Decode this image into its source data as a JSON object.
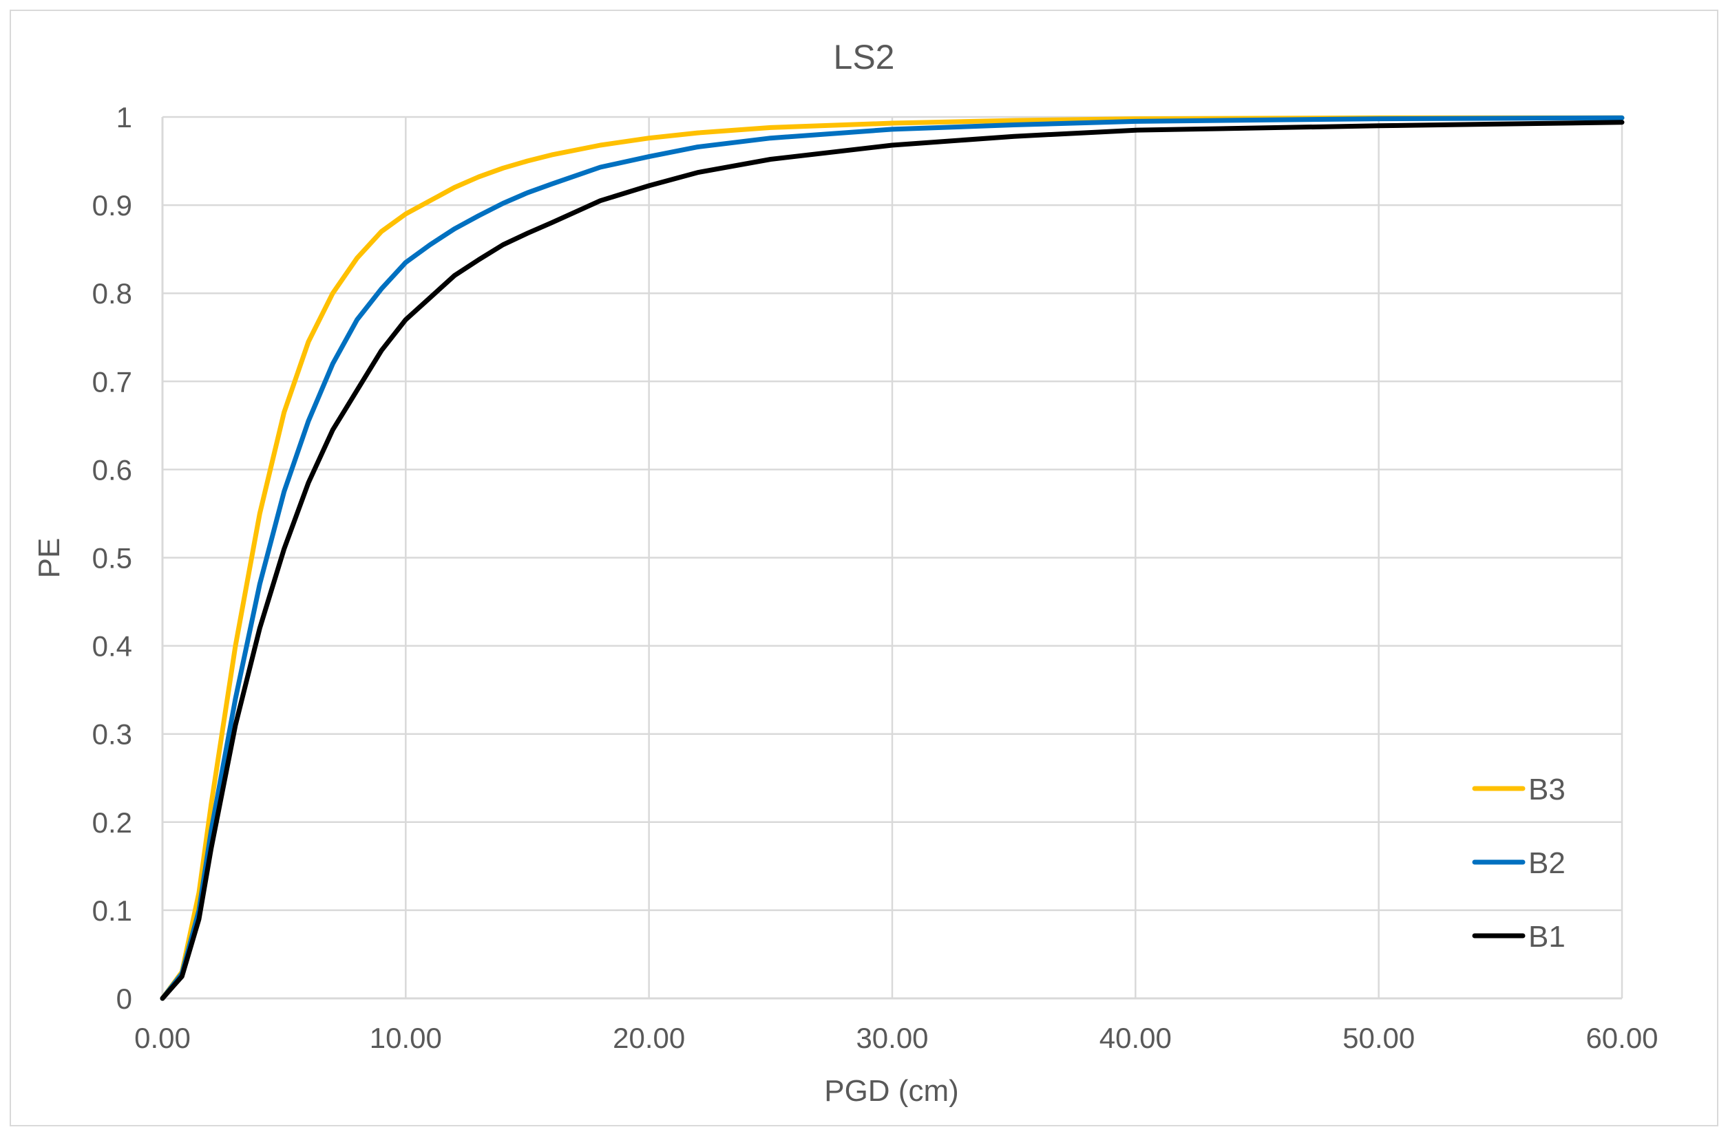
{
  "chart_data": {
    "type": "line",
    "title": "LS2",
    "xlabel": "PGD (cm)",
    "ylabel": "PE",
    "xlim": [
      0,
      60
    ],
    "ylim": [
      0,
      1
    ],
    "x_ticks": [
      "0.00",
      "10.00",
      "20.00",
      "30.00",
      "40.00",
      "50.00",
      "60.00"
    ],
    "y_ticks": [
      "0",
      "0.1",
      "0.2",
      "0.3",
      "0.4",
      "0.5",
      "0.6",
      "0.7",
      "0.8",
      "0.9",
      "1"
    ],
    "grid": true,
    "legend_position": "bottom-right",
    "series": [
      {
        "name": "B3",
        "color": "#ffc000",
        "x": [
          0,
          0.8,
          1.5,
          2,
          3,
          4,
          5,
          6,
          7,
          8,
          9,
          10,
          11,
          12,
          13,
          14,
          15,
          16,
          18,
          20,
          22,
          25,
          30,
          35,
          40,
          50,
          60
        ],
        "y": [
          0,
          0.03,
          0.12,
          0.22,
          0.4,
          0.55,
          0.665,
          0.745,
          0.8,
          0.84,
          0.87,
          0.89,
          0.905,
          0.92,
          0.932,
          0.942,
          0.95,
          0.957,
          0.968,
          0.976,
          0.982,
          0.988,
          0.993,
          0.996,
          0.998,
          0.999,
          0.999
        ]
      },
      {
        "name": "B2",
        "color": "#0070c0",
        "x": [
          0,
          0.8,
          1.5,
          2,
          3,
          4,
          5,
          6,
          7,
          8,
          9,
          10,
          11,
          12,
          13,
          14,
          15,
          16,
          18,
          20,
          22,
          25,
          30,
          35,
          40,
          50,
          60
        ],
        "y": [
          0,
          0.028,
          0.1,
          0.19,
          0.34,
          0.47,
          0.575,
          0.655,
          0.72,
          0.77,
          0.805,
          0.835,
          0.855,
          0.873,
          0.888,
          0.902,
          0.914,
          0.924,
          0.943,
          0.955,
          0.966,
          0.976,
          0.986,
          0.991,
          0.995,
          0.998,
          0.999
        ]
      },
      {
        "name": "B1",
        "color": "#000000",
        "x": [
          0,
          0.8,
          1.5,
          2,
          3,
          4,
          5,
          6,
          7,
          8,
          9,
          10,
          11,
          12,
          13,
          14,
          15,
          16,
          18,
          20,
          22,
          25,
          30,
          35,
          40,
          50,
          60
        ],
        "y": [
          0,
          0.025,
          0.09,
          0.17,
          0.31,
          0.42,
          0.51,
          0.585,
          0.645,
          0.69,
          0.735,
          0.77,
          0.795,
          0.82,
          0.838,
          0.855,
          0.868,
          0.88,
          0.905,
          0.922,
          0.937,
          0.952,
          0.968,
          0.978,
          0.985,
          0.99,
          0.994
        ]
      }
    ]
  }
}
